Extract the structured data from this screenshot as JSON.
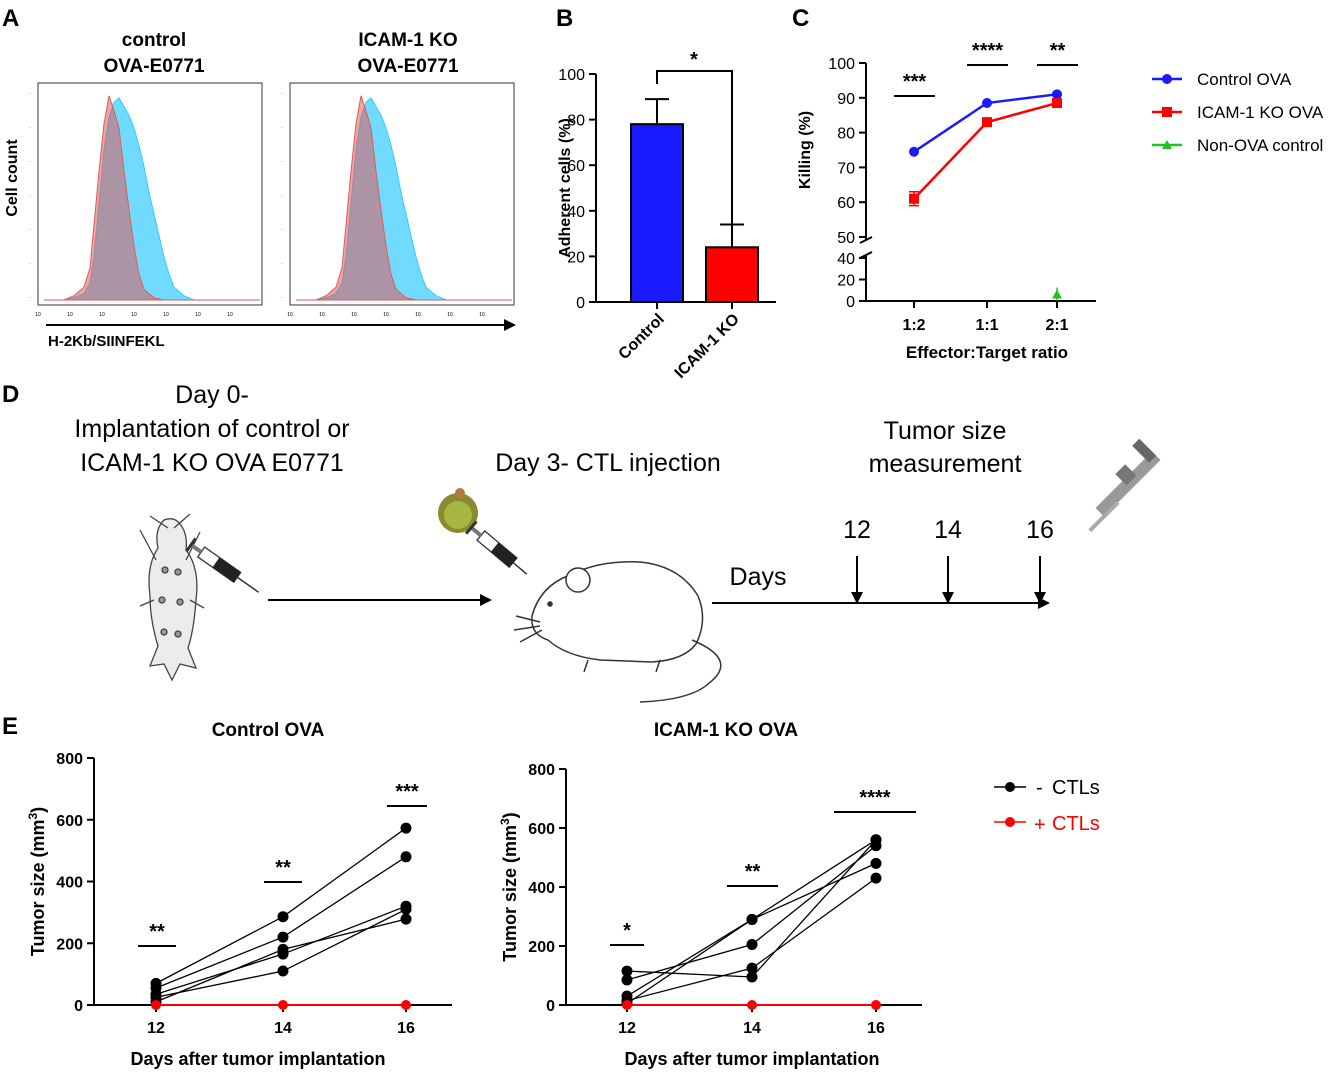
{
  "colors": {
    "blue": "#1a1aff",
    "red": "#ff0000",
    "green": "#22c022",
    "cyan": "#33ccff",
    "histogram_red": "#e05a5a",
    "black": "#000000"
  },
  "panels": {
    "a": "A",
    "b": "B",
    "c": "C",
    "d": "D",
    "e": "E"
  },
  "chart_data": [
    {
      "id": "A",
      "type": "area",
      "titles": [
        "control\nOVA-E0771",
        "ICAM-1 KO\nOVA-E0771"
      ],
      "ylabel": "Cell count",
      "xlabel": "H-2Kb/SIINFEKL",
      "series": [
        {
          "name": "control",
          "color": "#e05a5a",
          "x": [
            0,
            10,
            20,
            30,
            40,
            46,
            50,
            55,
            60,
            65,
            70,
            75,
            80,
            85,
            90,
            95,
            100,
            110,
            120,
            140,
            160,
            216
          ],
          "y": [
            0,
            0,
            0,
            2,
            6,
            15,
            35,
            60,
            82,
            95,
            88,
            80,
            60,
            42,
            25,
            12,
            5,
            1,
            0,
            0,
            0,
            0
          ]
        },
        {
          "name": "SIINFEKL",
          "color": "#33ccff",
          "x": [
            0,
            10,
            20,
            30,
            40,
            46,
            50,
            55,
            60,
            65,
            70,
            75,
            80,
            85,
            90,
            95,
            100,
            105,
            110,
            115,
            120,
            125,
            130,
            140,
            150,
            216
          ],
          "y": [
            0,
            0,
            0,
            1,
            3,
            8,
            20,
            45,
            70,
            85,
            92,
            94,
            90,
            86,
            80,
            72,
            62,
            50,
            40,
            30,
            20,
            12,
            6,
            2,
            0,
            0
          ]
        }
      ]
    },
    {
      "id": "B",
      "type": "bar",
      "categories": [
        "Control",
        "ICAM-1 KO"
      ],
      "values": [
        78,
        24
      ],
      "errors": [
        11,
        10
      ],
      "colors": [
        "#1a1aff",
        "#ff0000"
      ],
      "ylabel": "Adherent cells (%)",
      "ylim": [
        0,
        100
      ],
      "yticks": [
        "0",
        "20",
        "40",
        "60",
        "80",
        "100"
      ],
      "significance": "*"
    },
    {
      "id": "C",
      "type": "line",
      "categories": [
        "1:2",
        "1:1",
        "2:1"
      ],
      "xlabel": "Effector:Target ratio",
      "ylabel": "Killing (%)",
      "yticks_upper": [
        "50",
        "60",
        "70",
        "80",
        "90",
        "100"
      ],
      "yticks_lower": [
        "0",
        "20",
        "40"
      ],
      "series": [
        {
          "name": "Control OVA",
          "color": "#1a1aff",
          "marker": "circle",
          "values": [
            74.5,
            88.5,
            91
          ]
        },
        {
          "name": "ICAM-1 KO OVA",
          "color": "#ff0000",
          "marker": "square",
          "values": [
            61,
            83,
            88.5
          ],
          "errors": [
            2,
            0.8,
            0.8
          ]
        },
        {
          "name": "Non-OVA control",
          "color": "#22c022",
          "marker": "triangle",
          "values": [
            null,
            null,
            6
          ]
        }
      ],
      "significance": [
        "***",
        "****",
        "**"
      ]
    },
    {
      "id": "E1",
      "type": "scatter",
      "title": "Control OVA",
      "xlabel": "Days after tumor implantation",
      "ylabel": "Tumor size (mm",
      "ylabel_sup": "3",
      "ylabel_end": ")",
      "ylim": [
        0,
        800
      ],
      "yticks": [
        "0",
        "200",
        "400",
        "600",
        "800"
      ],
      "x": [
        "12",
        "14",
        "16"
      ],
      "minus_ctl": [
        [
          70,
          286,
          573
        ],
        [
          55,
          220,
          480
        ],
        [
          35,
          165,
          320
        ],
        [
          25,
          110,
          310
        ],
        [
          10,
          180,
          278
        ]
      ],
      "plus_ctl": [
        0,
        0,
        0
      ],
      "significance": [
        "**",
        "**",
        "***"
      ]
    },
    {
      "id": "E2",
      "type": "scatter",
      "title": "ICAM-1 KO OVA",
      "xlabel": "Days after tumor implantation",
      "ylabel": "Tumor size (mm",
      "ylabel_sup": "3",
      "ylabel_end": ")",
      "ylim": [
        0,
        800
      ],
      "yticks": [
        "0",
        "200",
        "400",
        "600",
        "800"
      ],
      "x": [
        "12",
        "14",
        "16"
      ],
      "minus_ctl": [
        [
          115,
          95,
          560
        ],
        [
          85,
          205,
          540
        ],
        [
          30,
          290,
          480
        ],
        [
          15,
          125,
          430
        ],
        [
          5,
          290,
          560
        ]
      ],
      "plus_ctl": [
        0,
        0,
        0
      ],
      "significance": [
        "*",
        "**",
        "****"
      ]
    }
  ],
  "legend_e": {
    "minus_sign": "-",
    "plus_sign": "+",
    "label": "CTLs"
  },
  "diagram": {
    "day0_line1": "Day 0-",
    "day0_line2": "Implantation of control or",
    "day0_line3": "ICAM-1 KO OVA E0771",
    "day3": "Day 3- CTL injection",
    "tumor_line1": "Tumor size",
    "tumor_line2": "measurement",
    "days_label": "Days",
    "timeline_days": [
      "12",
      "14",
      "16"
    ]
  }
}
